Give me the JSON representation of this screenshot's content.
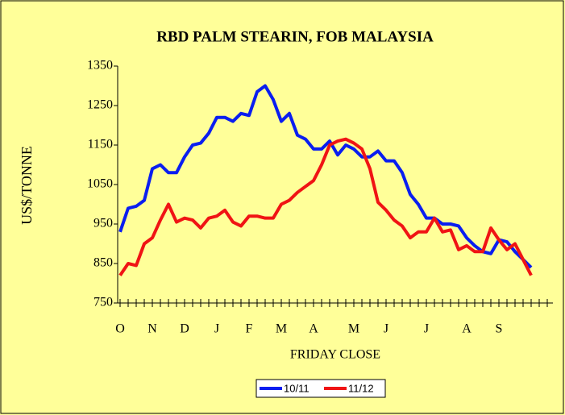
{
  "chart_data": {
    "type": "line",
    "title": "RBD PALM STEARIN, FOB MALAYSIA",
    "y_label": "US$/TONNE",
    "x_label": "FRIDAY CLOSE",
    "categories": [
      "O",
      null,
      null,
      null,
      "N",
      null,
      null,
      null,
      "D",
      null,
      null,
      null,
      "J",
      null,
      null,
      null,
      "F",
      null,
      null,
      null,
      "M",
      null,
      null,
      null,
      "A",
      null,
      null,
      null,
      null,
      "M",
      null,
      null,
      null,
      "J",
      null,
      null,
      null,
      null,
      "J",
      null,
      null,
      null,
      null,
      "A",
      null,
      null,
      null,
      "S",
      null,
      null,
      null,
      null,
      null,
      null
    ],
    "series": [
      {
        "name": "10/11",
        "color": "#0a1ef0",
        "values": [
          930,
          990,
          995,
          1010,
          1090,
          1100,
          1080,
          1080,
          1120,
          1150,
          1155,
          1180,
          1220,
          1220,
          1210,
          1230,
          1225,
          1285,
          1300,
          1265,
          1210,
          1230,
          1175,
          1165,
          1140,
          1140,
          1160,
          1125,
          1150,
          1140,
          1120,
          1120,
          1135,
          1110,
          1110,
          1080,
          1025,
          1000,
          965,
          965,
          950,
          950,
          945,
          915,
          895,
          880,
          875,
          910,
          905,
          880,
          860,
          840,
          null,
          null
        ]
      },
      {
        "name": "11/12",
        "color": "#f01414",
        "values": [
          820,
          850,
          845,
          900,
          915,
          960,
          1000,
          955,
          965,
          960,
          940,
          965,
          970,
          985,
          955,
          945,
          970,
          970,
          965,
          965,
          1000,
          1010,
          1030,
          1045,
          1060,
          1100,
          1150,
          1160,
          1165,
          1155,
          1140,
          1090,
          1005,
          985,
          960,
          945,
          915,
          930,
          930,
          965,
          930,
          935,
          885,
          895,
          880,
          880,
          940,
          910,
          885,
          900,
          860,
          820,
          null,
          null
        ]
      }
    ],
    "ylim": [
      750,
      1350
    ],
    "yticks": [
      750,
      850,
      950,
      1050,
      1150,
      1250,
      1350
    ],
    "grid": false,
    "legend": "bottom"
  }
}
